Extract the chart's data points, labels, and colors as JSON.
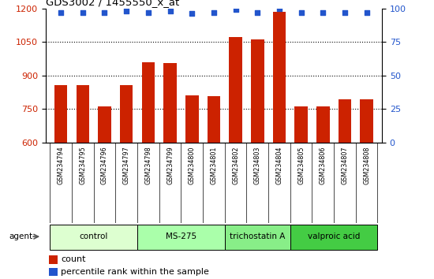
{
  "title": "GDS3002 / 1455550_x_at",
  "samples": [
    "GSM234794",
    "GSM234795",
    "GSM234796",
    "GSM234797",
    "GSM234798",
    "GSM234799",
    "GSM234800",
    "GSM234801",
    "GSM234802",
    "GSM234803",
    "GSM234804",
    "GSM234805",
    "GSM234806",
    "GSM234807",
    "GSM234808"
  ],
  "counts": [
    855,
    855,
    762,
    855,
    960,
    955,
    810,
    808,
    1070,
    1060,
    1185,
    762,
    762,
    792,
    792
  ],
  "percentiles": [
    97,
    97,
    97,
    98,
    97,
    98,
    96,
    97,
    99,
    97,
    100,
    97,
    97,
    97,
    97
  ],
  "bar_color": "#cc2200",
  "dot_color": "#2255cc",
  "ylim_left": [
    600,
    1200
  ],
  "ylim_right": [
    0,
    100
  ],
  "yticks_left": [
    600,
    750,
    900,
    1050,
    1200
  ],
  "yticks_right": [
    0,
    25,
    50,
    75,
    100
  ],
  "groups": [
    {
      "label": "control",
      "start": 0,
      "end": 4,
      "color": "#ddffd0"
    },
    {
      "label": "MS-275",
      "start": 4,
      "end": 8,
      "color": "#aaffaa"
    },
    {
      "label": "trichostatin A",
      "start": 8,
      "end": 11,
      "color": "#88ee88"
    },
    {
      "label": "valproic acid",
      "start": 11,
      "end": 15,
      "color": "#44cc44"
    }
  ],
  "xtick_bg_color": "#c8c8c8",
  "legend_count_color": "#cc2200",
  "legend_dot_color": "#2255cc"
}
